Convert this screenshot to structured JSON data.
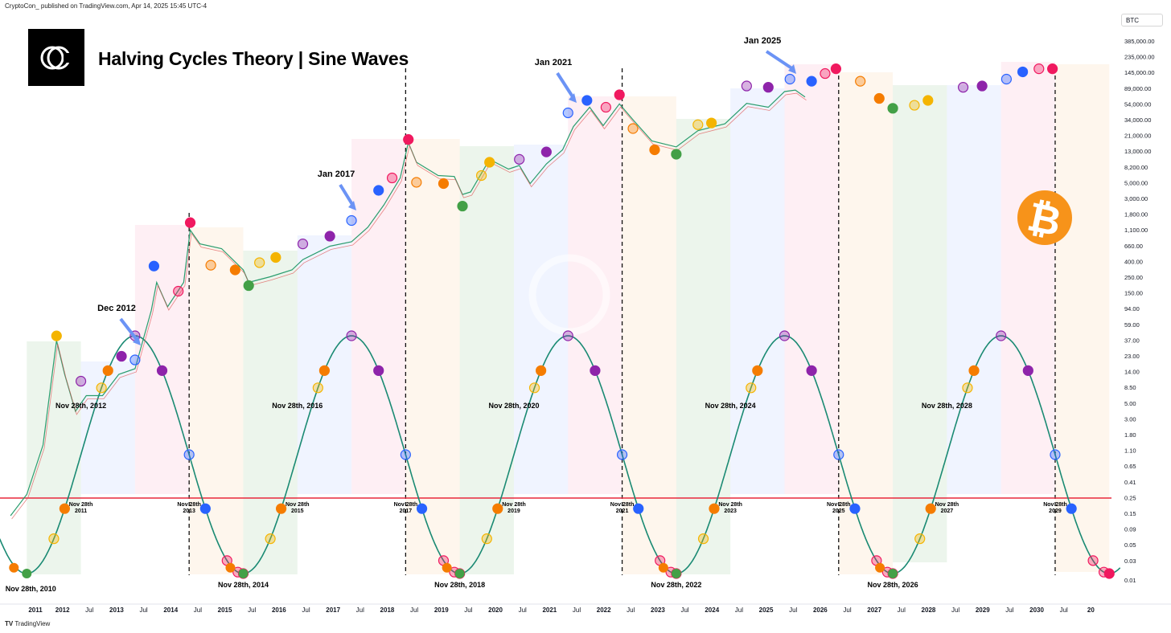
{
  "header": {
    "text": "CryptoCon_ published on TradingView.com, Apr 14, 2025 15:45 UTC-4"
  },
  "title": "Halving Cycles Theory | Sine Waves",
  "symbol": "BTC",
  "footer": "TradingView",
  "colors": {
    "sine": "#1a8a73",
    "hline": "#e8283c",
    "red": "#f0195f",
    "blue": "#2962ff",
    "purple": "#8e24aa",
    "yellow": "#f4b400",
    "orange": "#f57c00",
    "green": "#43a047",
    "btc": "#f7931a"
  },
  "chart_data": {
    "type": "line",
    "title": "Halving Cycles Theory | Sine Waves",
    "y_scale": "log",
    "ylim": [
      0.01,
      1000000
    ],
    "x_tick_labels": [
      "2011",
      "2012",
      "Jul",
      "2013",
      "Jul",
      "2014",
      "Jul",
      "2015",
      "Jul",
      "2016",
      "Jul",
      "2017",
      "Jul",
      "2018",
      "Jul",
      "2019",
      "Jul",
      "2020",
      "Jul",
      "2021",
      "Jul",
      "2022",
      "Jul",
      "2023",
      "Jul",
      "2024",
      "Jul",
      "2025",
      "Jul",
      "2026",
      "Jul",
      "2027",
      "Jul",
      "2028",
      "Jul",
      "2029",
      "Jul",
      "2030",
      "Jul",
      "20"
    ],
    "y_tick_labels": [
      "385,000.00",
      "235,000.00",
      "145,000.00",
      "89,000.00",
      "54,000.00",
      "34,000.00",
      "21,000.00",
      "13,000.00",
      "8,200.00",
      "5,000.00",
      "3,000.00",
      "1,800.00",
      "1,100.00",
      "660.00",
      "400.00",
      "250.00",
      "150.00",
      "94.00",
      "59.00",
      "37.00",
      "23.00",
      "14.00",
      "8.50",
      "5.00",
      "3.00",
      "1.80",
      "1.10",
      "0.65",
      "0.41",
      "0.25",
      "0.15",
      "0.09",
      "0.05",
      "0.03",
      "0.01"
    ],
    "series": [
      {
        "name": "BTC",
        "points": [
          [
            2010.6,
            0.1
          ],
          [
            2010.9,
            0.2
          ],
          [
            2011.2,
            1
          ],
          [
            2011.45,
            30
          ],
          [
            2011.6,
            10
          ],
          [
            2011.8,
            3
          ],
          [
            2012.0,
            5
          ],
          [
            2012.3,
            5
          ],
          [
            2012.6,
            10
          ],
          [
            2012.9,
            12
          ],
          [
            2013.2,
            80
          ],
          [
            2013.3,
            200
          ],
          [
            2013.5,
            90
          ],
          [
            2013.8,
            200
          ],
          [
            2013.92,
            1100
          ],
          [
            2014.1,
            700
          ],
          [
            2014.5,
            600
          ],
          [
            2014.9,
            300
          ],
          [
            2015.0,
            200
          ],
          [
            2015.4,
            240
          ],
          [
            2015.8,
            300
          ],
          [
            2016.0,
            420
          ],
          [
            2016.5,
            650
          ],
          [
            2016.9,
            750
          ],
          [
            2017.2,
            1200
          ],
          [
            2017.5,
            2500
          ],
          [
            2017.8,
            6000
          ],
          [
            2017.95,
            19000
          ],
          [
            2018.1,
            10000
          ],
          [
            2018.5,
            6500
          ],
          [
            2018.8,
            6300
          ],
          [
            2018.95,
            3500
          ],
          [
            2019.1,
            3800
          ],
          [
            2019.45,
            11000
          ],
          [
            2019.8,
            8000
          ],
          [
            2020.0,
            9000
          ],
          [
            2020.2,
            5000
          ],
          [
            2020.5,
            9500
          ],
          [
            2020.8,
            15000
          ],
          [
            2021.0,
            32000
          ],
          [
            2021.3,
            60000
          ],
          [
            2021.55,
            33000
          ],
          [
            2021.85,
            67000
          ],
          [
            2022.1,
            40000
          ],
          [
            2022.45,
            20000
          ],
          [
            2022.9,
            16500
          ],
          [
            2023.3,
            28000
          ],
          [
            2023.8,
            35000
          ],
          [
            2024.2,
            68000
          ],
          [
            2024.6,
            60000
          ],
          [
            2024.9,
            100000
          ],
          [
            2025.1,
            105000
          ],
          [
            2025.28,
            84000
          ]
        ]
      },
      {
        "name": "Sine",
        "description": "4-year sine wave peaking Nov 28th of halving-peak years"
      }
    ],
    "peak_labels": [
      "Nov 28th, 2012",
      "Nov 28th, 2016",
      "Nov 28th, 2020",
      "Nov 28th, 2024",
      "Nov 28th, 2028"
    ],
    "trough_labels": [
      "Nov 28th, 2010",
      "Nov 28th, 2014",
      "Nov 28th, 2018",
      "Nov 28th, 2022",
      "Nov 28th, 2026"
    ],
    "cross_labels": [
      [
        "Nov 28th",
        "2011"
      ],
      [
        "Nov 28th",
        "2013"
      ],
      [
        "Nov 28th",
        "2015"
      ],
      [
        "Nov 28th",
        "2017"
      ],
      [
        "Nov 28th",
        "2019"
      ],
      [
        "Nov 28th",
        "2021"
      ],
      [
        "Nov 28th",
        "2023"
      ],
      [
        "Nov 28th",
        "2025"
      ],
      [
        "Nov 28th",
        "2027"
      ],
      [
        "Nov 28th",
        "2029"
      ]
    ],
    "annotations": [
      "Dec 2012",
      "Jan 2017",
      "Jan 2021",
      "Jan 2025"
    ]
  }
}
